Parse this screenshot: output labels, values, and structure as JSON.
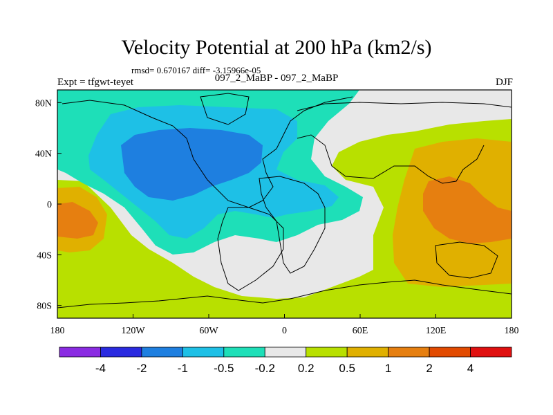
{
  "title": "Velocity Potential at 200 hPa (km2/s)",
  "stats": "rmsd= 0.670167 diff= -3.15966e-05",
  "left_label": "Expt = tfgwt-teyet",
  "center_label": "097_2_MaBP - 097_2_MaBP",
  "right_label": "DJF",
  "map": {
    "projection": "cylindrical equidistant",
    "lon_range": [
      -180,
      180
    ],
    "lat_range": [
      -90,
      90
    ],
    "x_ticks": [
      {
        "value": -180,
        "label": "180"
      },
      {
        "value": -120,
        "label": "120W"
      },
      {
        "value": -60,
        "label": "60W"
      },
      {
        "value": 0,
        "label": "0"
      },
      {
        "value": 60,
        "label": "60E"
      },
      {
        "value": 120,
        "label": "120E"
      },
      {
        "value": 180,
        "label": "180"
      }
    ],
    "y_ticks": [
      {
        "value": 80,
        "label": "80N"
      },
      {
        "value": 40,
        "label": "40N"
      },
      {
        "value": 0,
        "label": "0"
      },
      {
        "value": -40,
        "label": "40S"
      },
      {
        "value": -80,
        "label": "80S"
      }
    ]
  },
  "colorbar": {
    "colors": [
      "#8a2be2",
      "#2a2ae0",
      "#1e7fe0",
      "#1ec0e6",
      "#1edfb8",
      "#e8e8e8",
      "#b8e000",
      "#e0b000",
      "#e67f10",
      "#e24a00",
      "#e01010"
    ],
    "labels": [
      "-4",
      "-2",
      "-1",
      "-0.5",
      "-0.2",
      "0.2",
      "0.5",
      "1",
      "2",
      "4"
    ]
  }
}
